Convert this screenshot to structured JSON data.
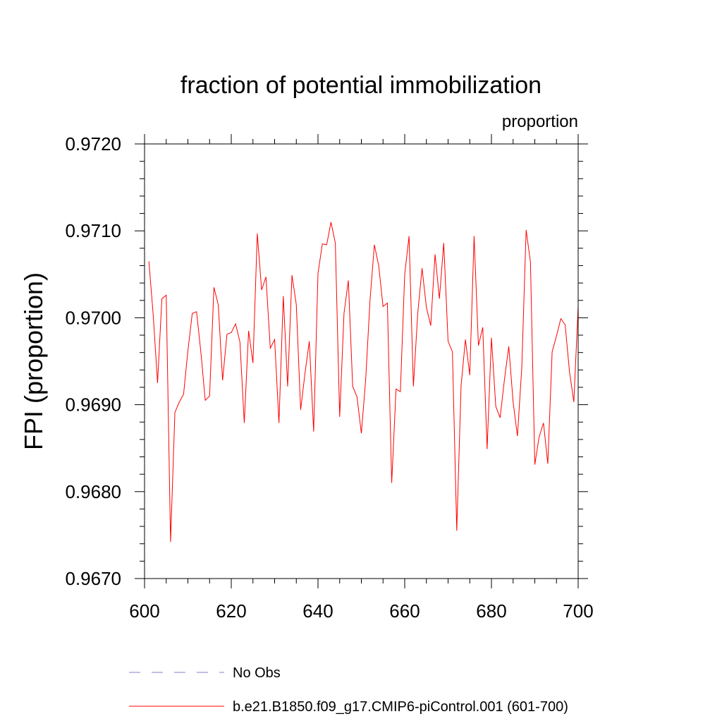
{
  "chart_data": {
    "type": "line",
    "title": "fraction of potential immobilization",
    "subtitle": "proportion",
    "xlabel": "",
    "ylabel": "FPI  (proportion)",
    "xlim": [
      600,
      700
    ],
    "ylim": [
      0.967,
      0.972
    ],
    "x_ticks": [
      600,
      620,
      640,
      660,
      680,
      700
    ],
    "x_tick_labels": [
      "600",
      "620",
      "640",
      "660",
      "680",
      "700"
    ],
    "y_ticks": [
      0.967,
      0.968,
      0.969,
      0.97,
      0.971,
      0.972
    ],
    "y_tick_labels": [
      "0.9670",
      "0.9680",
      "0.9690",
      "0.9700",
      "0.9710",
      "0.9720"
    ],
    "grid": false,
    "legend_position": "bottom",
    "legend": [
      {
        "label": "No Obs",
        "color": "#8080c8",
        "style": "dashed"
      },
      {
        "label": "b.e21.B1850.f09_g17.CMIP6-piControl.001 (601-700)",
        "color": "#ff0000",
        "style": "solid"
      }
    ],
    "series": [
      {
        "name": "b.e21.B1850.f09_g17.CMIP6-piControl.001 (601-700)",
        "color": "#ff0000",
        "x": [
          601,
          602,
          603,
          604,
          605,
          606,
          607,
          608,
          609,
          610,
          611,
          612,
          613,
          614,
          615,
          616,
          617,
          618,
          619,
          620,
          621,
          622,
          623,
          624,
          625,
          626,
          627,
          628,
          629,
          630,
          631,
          632,
          633,
          634,
          635,
          636,
          637,
          638,
          639,
          640,
          641,
          642,
          643,
          644,
          645,
          646,
          647,
          648,
          649,
          650,
          651,
          652,
          653,
          654,
          655,
          656,
          657,
          658,
          659,
          660,
          661,
          662,
          663,
          664,
          665,
          666,
          667,
          668,
          669,
          670,
          671,
          672,
          673,
          674,
          675,
          676,
          677,
          678,
          679,
          680,
          681,
          682,
          683,
          684,
          685,
          686,
          687,
          688,
          689,
          690,
          691,
          692,
          693,
          694,
          695,
          696,
          697,
          698,
          699,
          700
        ],
        "values": [
          0.97065,
          0.97003,
          0.96925,
          0.97022,
          0.97026,
          0.96742,
          0.96891,
          0.96903,
          0.96912,
          0.96962,
          0.97005,
          0.97007,
          0.9696,
          0.96905,
          0.9691,
          0.97035,
          0.97015,
          0.96928,
          0.96981,
          0.96983,
          0.96993,
          0.96972,
          0.96879,
          0.96985,
          0.96948,
          0.97097,
          0.97032,
          0.97047,
          0.96965,
          0.96975,
          0.96879,
          0.97025,
          0.96921,
          0.97049,
          0.97015,
          0.96894,
          0.96936,
          0.96973,
          0.96869,
          0.97051,
          0.97085,
          0.97084,
          0.9711,
          0.97086,
          0.96886,
          0.97005,
          0.97043,
          0.96921,
          0.96909,
          0.96867,
          0.96929,
          0.9702,
          0.97084,
          0.9706,
          0.97013,
          0.97017,
          0.9681,
          0.96918,
          0.96915,
          0.9705,
          0.97094,
          0.96921,
          0.97005,
          0.97057,
          0.97012,
          0.96991,
          0.97073,
          0.97022,
          0.97086,
          0.96973,
          0.96961,
          0.96755,
          0.96922,
          0.96975,
          0.96934,
          0.97094,
          0.96968,
          0.96989,
          0.96849,
          0.96977,
          0.96898,
          0.96885,
          0.96929,
          0.96967,
          0.96903,
          0.96864,
          0.96943,
          0.97101,
          0.97064,
          0.96831,
          0.96863,
          0.96879,
          0.96832,
          0.96961,
          0.96979,
          0.96999,
          0.96992,
          0.96938,
          0.96903,
          0.97013
        ]
      }
    ]
  }
}
